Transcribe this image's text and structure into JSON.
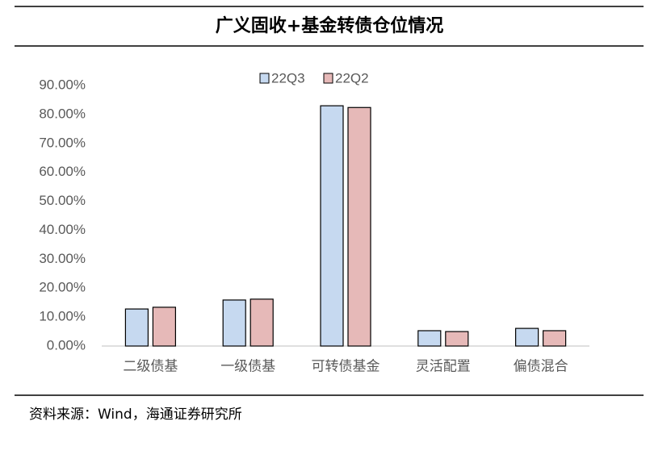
{
  "chart_data": {
    "type": "bar",
    "title": "广义固收+基金转债仓位情况",
    "categories": [
      "二级债基",
      "一级债基",
      "可转债基金",
      "灵活配置",
      "偏债混合"
    ],
    "series": [
      {
        "name": "22Q3",
        "color": "#c6d9f0",
        "values": [
          12.8,
          15.9,
          83.0,
          5.3,
          6.1
        ]
      },
      {
        "name": "22Q2",
        "color": "#e6b9b8",
        "values": [
          13.4,
          16.2,
          82.4,
          5.0,
          5.3
        ]
      }
    ],
    "ylim": [
      0,
      90
    ],
    "yticks": [
      {
        "value": 0,
        "label": "0.00%"
      },
      {
        "value": 10,
        "label": "10.00%"
      },
      {
        "value": 20,
        "label": "20.00%"
      },
      {
        "value": 30,
        "label": "30.00%"
      },
      {
        "value": 40,
        "label": "40.00%"
      },
      {
        "value": 50,
        "label": "50.00%"
      },
      {
        "value": 60,
        "label": "60.00%"
      },
      {
        "value": 70,
        "label": "70.00%"
      },
      {
        "value": 80,
        "label": "80.00%"
      },
      {
        "value": 90,
        "label": "90.00%"
      }
    ],
    "grid": false,
    "legend": "top",
    "source": "资料来源：Wind，海通证券研究所"
  }
}
